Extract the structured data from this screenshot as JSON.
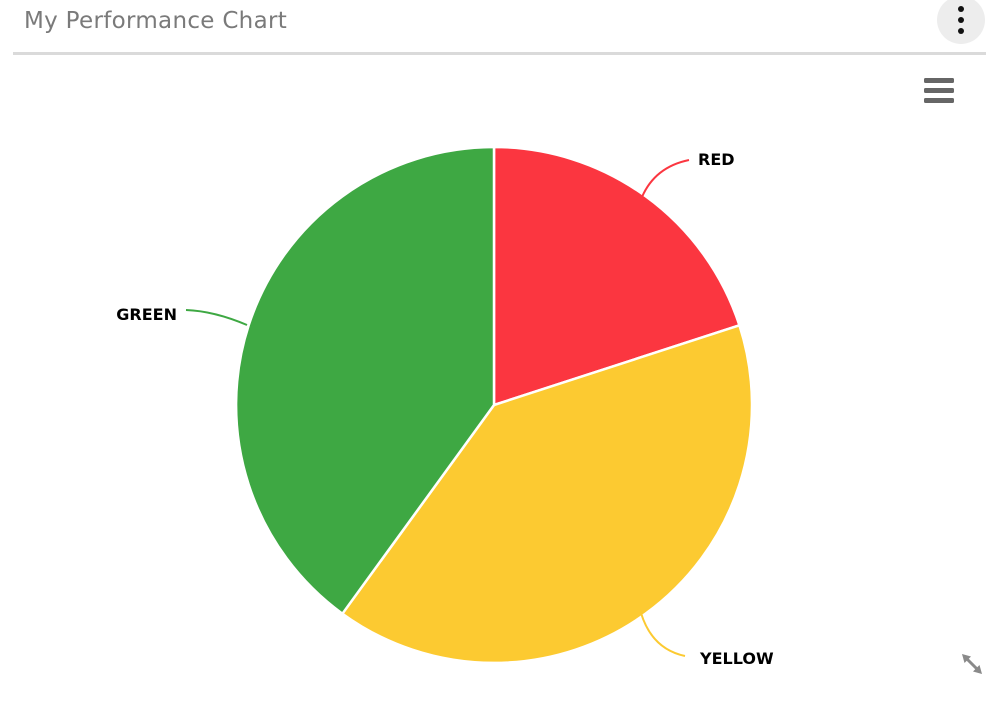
{
  "header": {
    "title": "My Performance Chart",
    "menu_button_icon": "kebab-menu-icon"
  },
  "toolbar": {
    "export_menu_icon": "hamburger-menu-icon"
  },
  "footer": {
    "resize_icon": "diagonal-resize-icon"
  },
  "colors": {
    "title_text": "#7a7a7a",
    "divider": "#dadada",
    "menu_button_bg": "#ededed",
    "menu_dots": "#111111",
    "hamburger_bars": "#666666",
    "resize_arrow": "#8a8a8a",
    "data_label_text": "#000000",
    "slice_border": "#ffffff"
  },
  "chart_data": {
    "type": "pie",
    "title": "My Performance Chart",
    "categories": [
      "RED",
      "YELLOW",
      "GREEN"
    ],
    "slices": [
      {
        "label": "RED",
        "value_percent": 20,
        "color": "#FB3640"
      },
      {
        "label": "YELLOW",
        "value_percent": 40,
        "color": "#FCCA31"
      },
      {
        "label": "GREEN",
        "value_percent": 40,
        "color": "#3EA843"
      }
    ],
    "start_angle_deg": 0,
    "direction": "clockwise",
    "legend": "none",
    "data_labels": "outside with colored connector lines"
  }
}
